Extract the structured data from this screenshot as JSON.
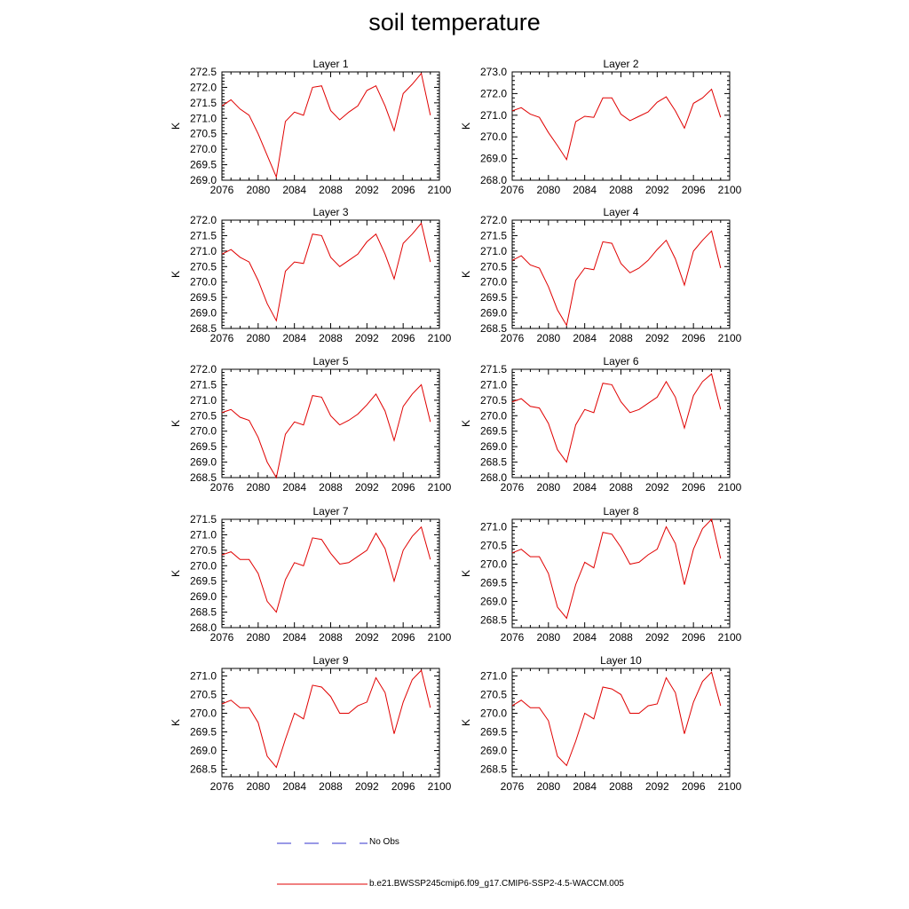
{
  "title": "soil temperature",
  "chart_data": {
    "type": "line",
    "x": [
      2076,
      2077,
      2078,
      2079,
      2080,
      2081,
      2082,
      2083,
      2084,
      2085,
      2086,
      2087,
      2088,
      2089,
      2090,
      2091,
      2092,
      2093,
      2094,
      2095,
      2096,
      2097,
      2098,
      2099
    ],
    "xticks": [
      2076,
      2080,
      2084,
      2088,
      2092,
      2096,
      2100
    ],
    "xlim": [
      2076,
      2100
    ],
    "ylabel": "K",
    "series_colors": {
      "model": "#e00000",
      "obs": "#3333cc"
    },
    "legend": [
      {
        "label": "No Obs",
        "style": "dashed",
        "color": "#3333cc"
      },
      {
        "label": "b.e21.BWSSP245cmip6.f09_g17.CMIP6-SSP2-4.5-WACCM.005",
        "style": "solid",
        "color": "#e00000"
      }
    ],
    "panels": [
      {
        "title": "Layer 1",
        "ylim": [
          269.0,
          272.5
        ],
        "yticks": [
          "269.0",
          "269.5",
          "270.0",
          "270.5",
          "271.0",
          "271.5",
          "272.0",
          "272.5"
        ],
        "values": [
          271.4,
          271.6,
          271.3,
          271.1,
          270.5,
          269.8,
          269.1,
          270.9,
          271.2,
          271.1,
          272.0,
          272.05,
          271.25,
          270.95,
          271.2,
          271.4,
          271.9,
          272.05,
          271.4,
          270.6,
          271.8,
          272.1,
          272.45,
          271.1
        ]
      },
      {
        "title": "Layer 2",
        "ylim": [
          268.0,
          273.0
        ],
        "yticks": [
          "268.0",
          "269.0",
          "270.0",
          "271.0",
          "272.0",
          "273.0"
        ],
        "values": [
          271.2,
          271.35,
          271.05,
          270.9,
          270.2,
          269.6,
          268.95,
          270.7,
          270.95,
          270.9,
          271.8,
          271.8,
          271.05,
          270.75,
          270.95,
          271.15,
          271.6,
          271.85,
          271.2,
          270.4,
          271.55,
          271.8,
          272.2,
          270.9
        ]
      },
      {
        "title": "Layer 3",
        "ylim": [
          268.5,
          272.0
        ],
        "yticks": [
          "268.5",
          "269.0",
          "269.5",
          "270.0",
          "270.5",
          "271.0",
          "271.5",
          "272.0"
        ],
        "values": [
          270.9,
          271.05,
          270.8,
          270.65,
          270.05,
          269.3,
          268.75,
          270.35,
          270.65,
          270.6,
          271.55,
          271.5,
          270.8,
          270.5,
          270.7,
          270.9,
          271.3,
          271.55,
          270.9,
          270.1,
          271.25,
          271.55,
          271.9,
          270.65
        ]
      },
      {
        "title": "Layer 4",
        "ylim": [
          268.5,
          272.0
        ],
        "yticks": [
          "268.5",
          "269.0",
          "269.5",
          "270.0",
          "270.5",
          "271.0",
          "271.5",
          "272.0"
        ],
        "values": [
          270.7,
          270.85,
          270.55,
          270.45,
          269.85,
          269.1,
          268.6,
          270.05,
          270.45,
          270.4,
          271.3,
          271.25,
          270.6,
          270.3,
          270.45,
          270.7,
          271.05,
          271.35,
          270.75,
          269.9,
          271.0,
          271.35,
          271.65,
          270.45
        ]
      },
      {
        "title": "Layer 5",
        "ylim": [
          268.5,
          272.0
        ],
        "yticks": [
          "268.5",
          "269.0",
          "269.5",
          "270.0",
          "270.5",
          "271.0",
          "271.5",
          "272.0"
        ],
        "values": [
          270.6,
          270.7,
          270.45,
          270.35,
          269.8,
          269.0,
          268.5,
          269.9,
          270.3,
          270.2,
          271.15,
          271.1,
          270.5,
          270.2,
          270.35,
          270.55,
          270.85,
          271.2,
          270.65,
          269.7,
          270.8,
          271.2,
          271.5,
          270.3
        ]
      },
      {
        "title": "Layer 6",
        "ylim": [
          268.0,
          271.5
        ],
        "yticks": [
          "268.0",
          "268.5",
          "269.0",
          "269.5",
          "270.0",
          "270.5",
          "271.0",
          "271.5"
        ],
        "values": [
          270.45,
          270.55,
          270.3,
          270.25,
          269.75,
          268.9,
          268.5,
          269.7,
          270.2,
          270.1,
          271.05,
          271.0,
          270.45,
          270.1,
          270.2,
          270.4,
          270.6,
          271.1,
          270.6,
          269.6,
          270.65,
          271.1,
          271.35,
          270.2
        ]
      },
      {
        "title": "Layer 7",
        "ylim": [
          268.0,
          271.5
        ],
        "yticks": [
          "268.0",
          "268.5",
          "269.0",
          "269.5",
          "270.0",
          "270.5",
          "271.0",
          "271.5"
        ],
        "values": [
          270.35,
          270.45,
          270.2,
          270.2,
          269.75,
          268.85,
          268.5,
          269.55,
          270.1,
          270.0,
          270.9,
          270.85,
          270.4,
          270.05,
          270.1,
          270.3,
          270.5,
          271.05,
          270.55,
          269.5,
          270.5,
          270.95,
          271.25,
          270.2
        ]
      },
      {
        "title": "Layer 8",
        "ylim": [
          268.3,
          271.2
        ],
        "yticks": [
          "268.5",
          "269.0",
          "269.5",
          "270.0",
          "270.5",
          "271.0"
        ],
        "values": [
          270.3,
          270.4,
          270.2,
          270.2,
          269.75,
          268.85,
          268.55,
          269.45,
          270.05,
          269.9,
          270.85,
          270.8,
          270.45,
          270.0,
          270.05,
          270.25,
          270.4,
          271.0,
          270.55,
          269.45,
          270.4,
          270.95,
          271.2,
          270.15
        ]
      },
      {
        "title": "Layer 9",
        "ylim": [
          268.3,
          271.2
        ],
        "yticks": [
          "268.5",
          "269.0",
          "269.5",
          "270.0",
          "270.5",
          "271.0"
        ],
        "values": [
          270.25,
          270.35,
          270.15,
          270.15,
          269.75,
          268.85,
          268.55,
          269.3,
          270.0,
          269.85,
          270.75,
          270.7,
          270.45,
          270.0,
          270.0,
          270.2,
          270.3,
          270.95,
          270.55,
          269.45,
          270.3,
          270.9,
          271.15,
          270.15
        ]
      },
      {
        "title": "Layer 10",
        "ylim": [
          268.3,
          271.2
        ],
        "yticks": [
          "268.5",
          "269.0",
          "269.5",
          "270.0",
          "270.5",
          "271.0"
        ],
        "values": [
          270.2,
          270.35,
          270.15,
          270.15,
          269.8,
          268.85,
          268.6,
          269.25,
          270.0,
          269.85,
          270.7,
          270.65,
          270.5,
          270.0,
          270.0,
          270.2,
          270.25,
          270.95,
          270.55,
          269.45,
          270.3,
          270.85,
          271.1,
          270.2
        ]
      }
    ]
  }
}
